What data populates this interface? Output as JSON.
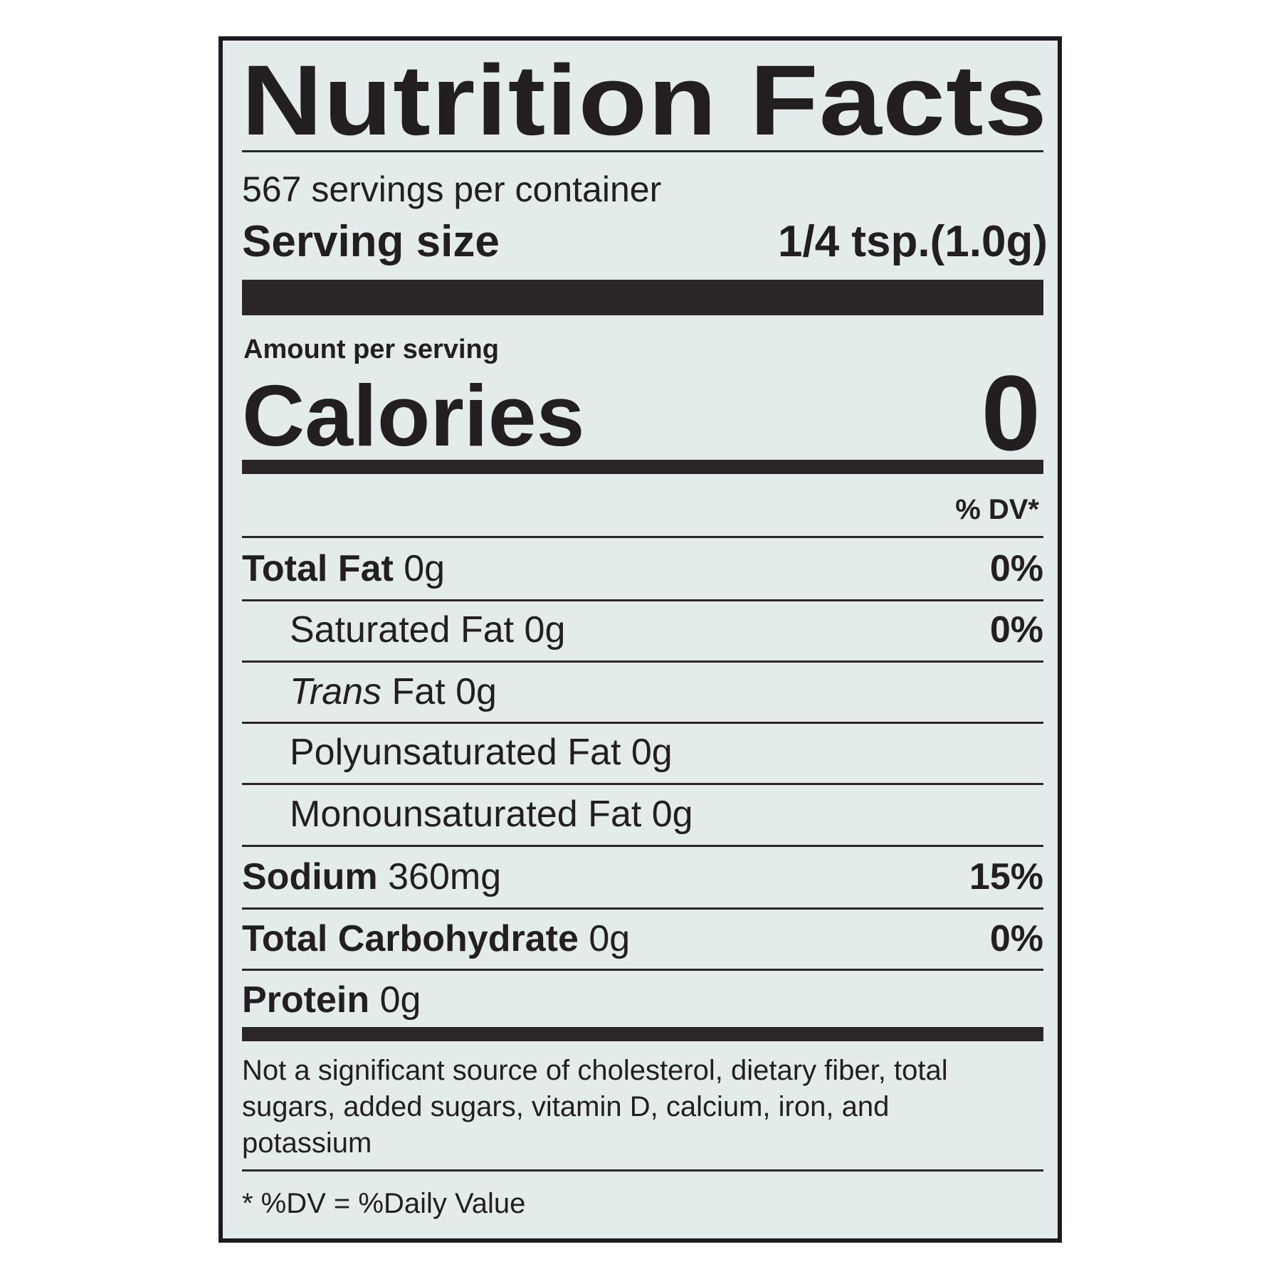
{
  "title": "Nutrition Facts",
  "servings_per_container": "567 servings per container",
  "serving_size": {
    "label": "Serving size",
    "value": "1/4 tsp.(1.0g)"
  },
  "amount_per_serving": "Amount per serving",
  "calories": {
    "label": "Calories",
    "value": "0"
  },
  "dv_header": "% DV*",
  "nutrients": [
    {
      "name": "Total Fat",
      "amount": "0g",
      "dv": "0%"
    },
    {
      "name": "Saturated Fat",
      "amount": "0g",
      "dv": "0%"
    },
    {
      "name": "Trans",
      "suffix": "Fat",
      "amount": "0g",
      "dv": ""
    },
    {
      "name": "Polyunsaturated Fat",
      "amount": "0g",
      "dv": ""
    },
    {
      "name": "Monounsaturated Fat",
      "amount": "0g",
      "dv": ""
    },
    {
      "name": "Sodium",
      "amount": "360mg",
      "dv": "15%"
    },
    {
      "name": "Total Carbohydrate",
      "amount": "0g",
      "dv": "0%"
    },
    {
      "name": "Protein",
      "amount": "0g",
      "dv": ""
    }
  ],
  "footnote": "Not a significant source of cholesterol, dietary fiber, total sugars, added sugars, vitamin D, calcium, iron, and potassium",
  "dv_note": "* %DV = %Daily Value",
  "colors": {
    "ink": "#231f20",
    "background": "#e3ebeb",
    "border": "#1d1b22"
  }
}
